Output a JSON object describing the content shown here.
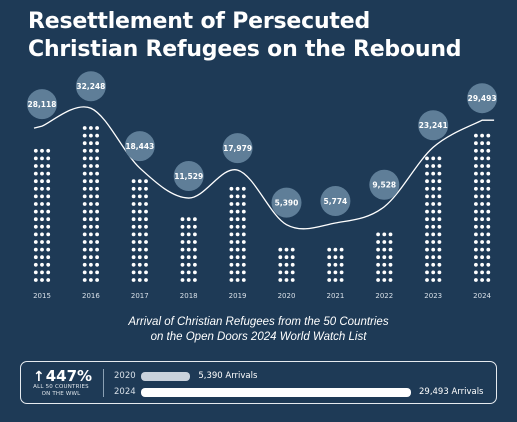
{
  "title_line1": "Resettlement of Persecuted",
  "title_line2": "Christian Refugees on the Rebound",
  "caption_line1": "Arrival of Christian Refugees from the 50 Countries",
  "caption_line2": "on the Open Doors 2024 World Watch List",
  "summary": {
    "increase": "447%",
    "increase_note_line1": "ALL 50 COUNTRIES",
    "increase_note_line2": "ON THE WWL",
    "rows": [
      {
        "year": "2020",
        "label": "5,390 Arrivals",
        "value": 5390
      },
      {
        "year": "2024",
        "label": "29,493 Arrivals",
        "value": 29493
      }
    ],
    "bar_colors": {
      "2020": "#c9d2dc",
      "2024": "#ffffff"
    }
  },
  "chart_data": {
    "type": "line",
    "categories": [
      "2015",
      "2016",
      "2017",
      "2018",
      "2019",
      "2020",
      "2021",
      "2022",
      "2023",
      "2024"
    ],
    "values": [
      28118,
      32248,
      18443,
      11529,
      17979,
      5390,
      5774,
      9528,
      23241,
      29493
    ],
    "value_labels": [
      "28,118",
      "32,248",
      "18,443",
      "11,529",
      "17,979",
      "5,390",
      "5,774",
      "9,528",
      "23,241",
      "29,493"
    ],
    "dot_rows": [
      18,
      21,
      14,
      9,
      13,
      5,
      5,
      7,
      17,
      20
    ],
    "dot_columns": 3,
    "colors": {
      "background": "#1e3a56",
      "dots": "#ffffff",
      "bubble": "#5f7e98",
      "line": "#ffffff"
    }
  }
}
